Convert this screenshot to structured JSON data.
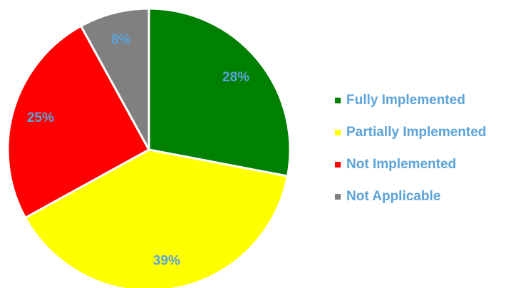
{
  "chart_data": {
    "type": "pie",
    "categories": [
      "Fully Implemented",
      "Partially Implemented",
      "Not Implemented",
      "Not Applicable"
    ],
    "values": [
      28,
      39,
      25,
      8
    ],
    "value_labels": [
      "28%",
      "39%",
      "25%",
      "8%"
    ],
    "colors": [
      "#008000",
      "#ffff00",
      "#ff0000",
      "#808080"
    ],
    "legend": "right"
  }
}
